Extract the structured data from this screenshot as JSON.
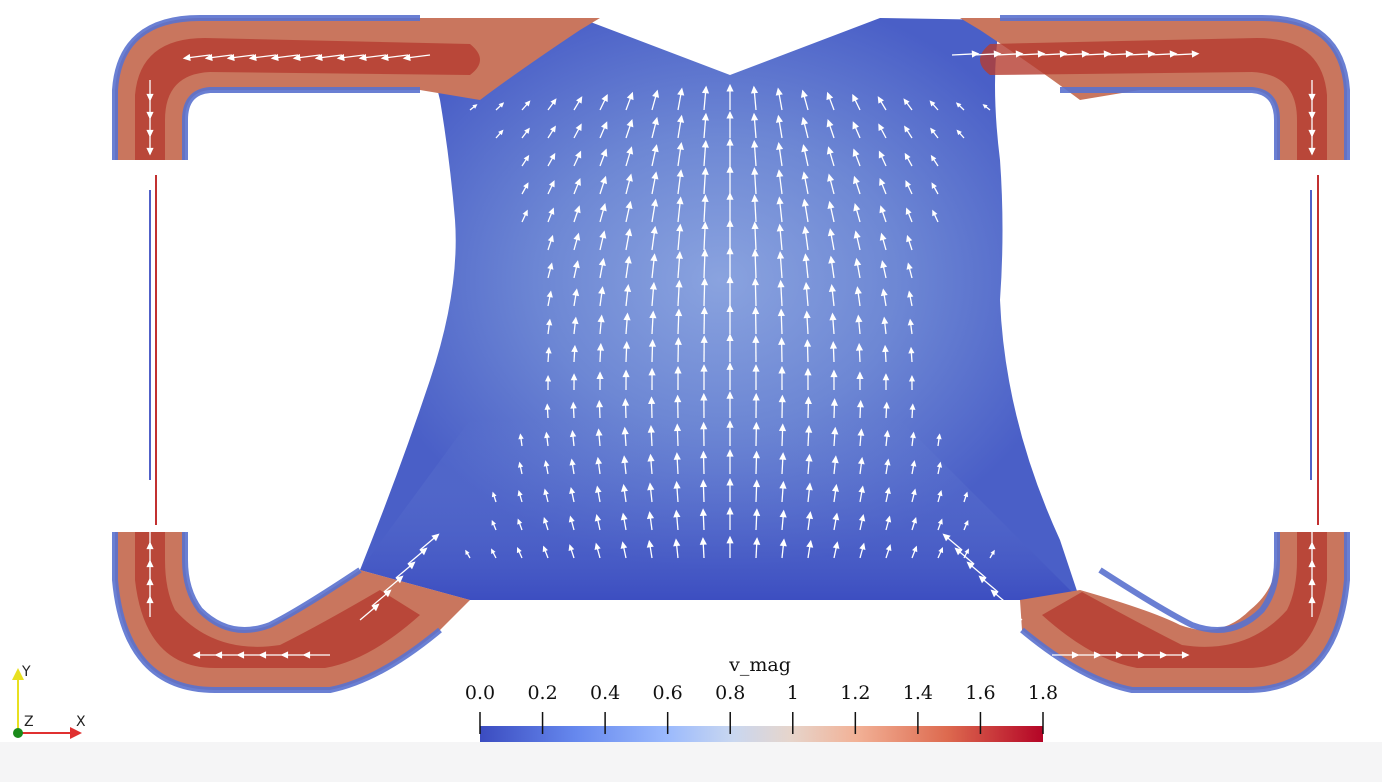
{
  "colorbar": {
    "title": "v_mag",
    "ticks": [
      {
        "value": 0.0,
        "label": "0.0"
      },
      {
        "value": 0.2,
        "label": "0.2"
      },
      {
        "value": 0.4,
        "label": "0.4"
      },
      {
        "value": 0.6,
        "label": "0.6"
      },
      {
        "value": 0.8,
        "label": "0.8"
      },
      {
        "value": 1.0,
        "label": "1"
      },
      {
        "value": 1.2,
        "label": "1.2"
      },
      {
        "value": 1.4,
        "label": "1.4"
      },
      {
        "value": 1.6,
        "label": "1.6"
      },
      {
        "value": 1.8,
        "label": "1.8"
      }
    ],
    "range": [
      0.0,
      1.8
    ],
    "colormap": [
      "#3b4cc0",
      "#7396f5",
      "#b0cbfc",
      "#dddddd",
      "#f6b89b",
      "#e07050",
      "#b40426"
    ]
  },
  "axes_triad": {
    "x_label": "X",
    "y_label": "Y",
    "z_label": "Z",
    "x_color": "#e03030",
    "y_color": "#e8e020",
    "z_color": "#1a8a1a"
  },
  "colors": {
    "domain_low": "#3b4cc0",
    "domain_high": "#b40426",
    "arrows": "#ffffff",
    "background": "#ffffff"
  }
}
